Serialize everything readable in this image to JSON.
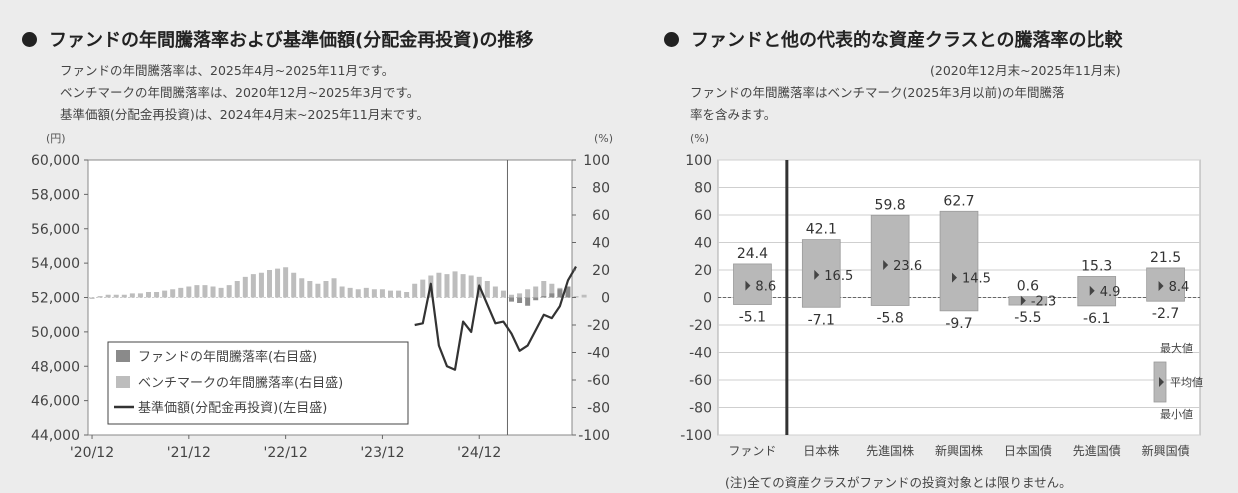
{
  "left": {
    "title": "ファンドの年間騰落率および基準価額(分配金再投資)の推移",
    "notes": [
      "ファンドの年間騰落率は、2025年4月~2025年11月です。",
      "ベンチマークの年間騰落率は、2020年12月~2025年3月です。",
      "基準価額(分配金再投資)は、2024年4月末~2025年11月末です。"
    ],
    "left_unit": "(円)",
    "right_unit": "(%)"
  },
  "right": {
    "title": "ファンドと他の代表的な資産クラスとの騰落率の比較",
    "period": "(2020年12月末~2025年11月末)",
    "notes": [
      "ファンドの年間騰落率はベンチマーク(2025年3月以前)の年間騰落",
      "率を含みます。"
    ],
    "unit": "(%)",
    "footnote": "(注)全ての資産クラスがファンドの投資対象とは限りません。"
  },
  "colors": {
    "bar_dark": "#8a8a8a",
    "bar_light": "#bdbdbd",
    "line": "#333333",
    "grid": "#cfcfcf",
    "background": "#ececec"
  },
  "chart_data": [
    {
      "type": "bar",
      "combo": "bar+line",
      "y_left_label": "(円)",
      "y_left_range": [
        44000,
        60000
      ],
      "y_left_ticks": [
        "60,000",
        "58,000",
        "56,000",
        "54,000",
        "52,000",
        "50,000",
        "48,000",
        "46,000",
        "44,000"
      ],
      "y_right_label": "(%)",
      "y_right_range": [
        -100,
        100
      ],
      "y_right_ticks": [
        "100",
        "80",
        "60",
        "40",
        "20",
        "0",
        "-20",
        "-40",
        "-60",
        "-80",
        "-100"
      ],
      "x_ticks": [
        "'20/12",
        "'21/12",
        "'22/12",
        "'23/12",
        "'24/12"
      ],
      "legend": [
        "ファンドの年間騰落率(右目盛)",
        "ベンチマークの年間騰落率(右目盛)",
        "基準価額(分配金再投資)(左目盛)"
      ],
      "series": [
        {
          "name": "ベンチマークの年間騰落率(右目盛)",
          "start": "2020-12",
          "axis": "right",
          "values": [
            -1,
            1,
            2,
            2,
            2,
            3,
            3,
            4,
            4,
            5,
            6,
            7,
            8,
            9,
            9,
            8,
            7,
            9,
            12,
            15,
            17,
            18,
            20,
            21,
            22,
            18,
            14,
            12,
            10,
            12,
            14,
            8,
            7,
            6,
            7,
            6,
            6,
            5,
            5,
            4,
            10,
            13,
            16,
            18,
            17,
            19,
            17,
            16,
            15,
            12,
            8,
            5,
            2,
            3,
            6,
            8,
            12,
            10,
            7,
            3,
            1,
            2
          ]
        },
        {
          "name": "ファンドの年間騰落率(右目盛)",
          "start": "2025-04",
          "axis": "right",
          "values": [
            -3,
            -4,
            -6,
            -2,
            1,
            3,
            6,
            8
          ]
        },
        {
          "name": "基準価額(分配金再投資)(左目盛)",
          "start": "2024-04",
          "axis": "left",
          "values": [
            50400,
            50500,
            52800,
            49200,
            48000,
            47800,
            50600,
            50000,
            52700,
            51600,
            50500,
            50600,
            49900,
            48900,
            49200,
            50100,
            51000,
            50800,
            51500,
            53000,
            53800
          ]
        }
      ]
    },
    {
      "type": "bar",
      "title": "ファンドと他の代表的な資産クラスとの騰落率の比較",
      "ylabel": "(%)",
      "ylim": [
        -100,
        100
      ],
      "y_ticks": [
        "100",
        "80",
        "60",
        "40",
        "20",
        "0",
        "-20",
        "-40",
        "-60",
        "-80",
        "-100"
      ],
      "categories": [
        "ファンド",
        "日本株",
        "先進国株",
        "新興国株",
        "日本国債",
        "先進国債",
        "新興国債"
      ],
      "series": [
        {
          "name": "最大値",
          "values": [
            24.4,
            42.1,
            59.8,
            62.7,
            0.6,
            15.3,
            21.5
          ]
        },
        {
          "name": "平均値",
          "values": [
            8.6,
            16.5,
            23.6,
            14.5,
            -2.3,
            4.9,
            8.4
          ]
        },
        {
          "name": "最小値",
          "values": [
            -5.1,
            -7.1,
            -5.8,
            -9.7,
            -5.5,
            -6.1,
            -2.7
          ]
        }
      ],
      "max_labels": [
        "24.4",
        "42.1",
        "59.8",
        "62.7",
        "0.6",
        "15.3",
        "21.5"
      ],
      "avg_labels": [
        "8.6",
        "16.5",
        "23.6",
        "14.5",
        "-2.3",
        "4.9",
        "8.4"
      ],
      "min_labels": [
        "-5.1",
        "-7.1",
        "-5.8",
        "-9.7",
        "-5.5",
        "-6.1",
        "-2.7"
      ],
      "legend": [
        "最大値",
        "平均値",
        "最小値"
      ]
    }
  ]
}
